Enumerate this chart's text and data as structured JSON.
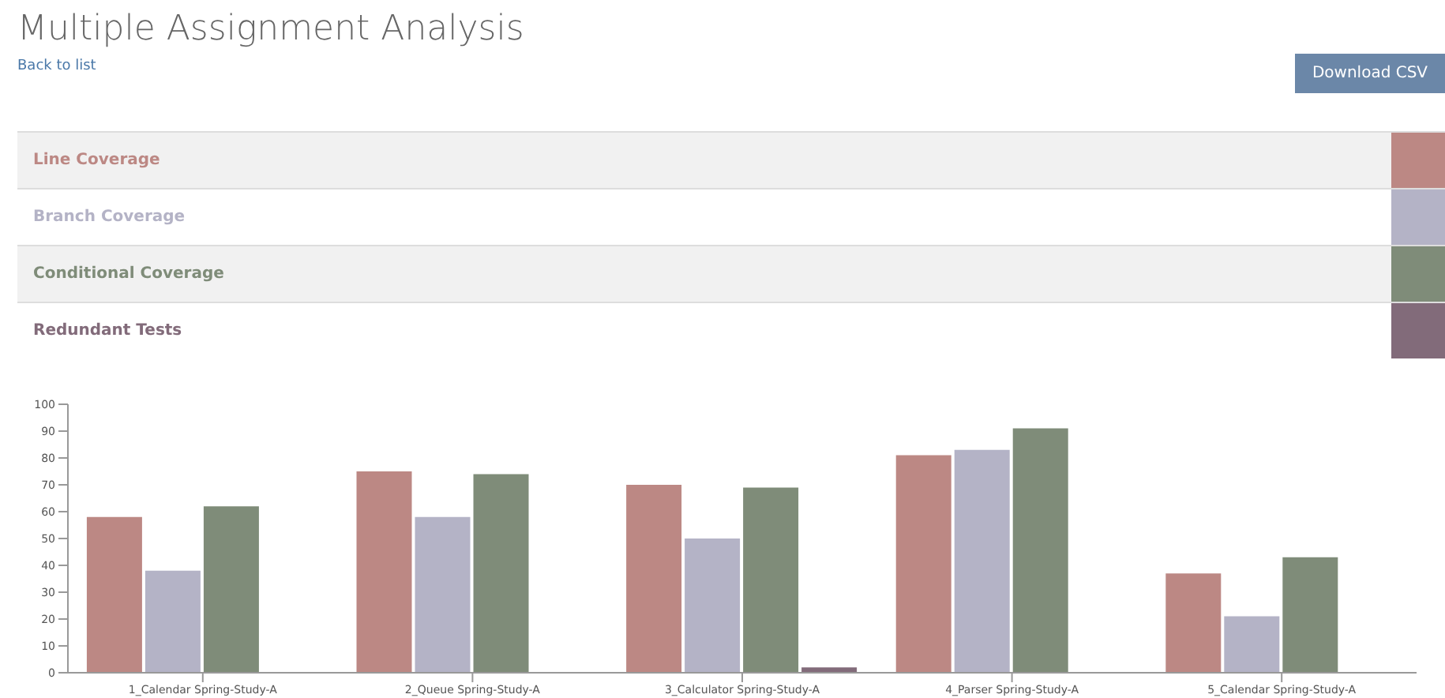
{
  "chart_data": {
    "type": "bar",
    "title": "Multiple Assignment Analysis",
    "annotations": [
      "Back to list",
      "Download CSV"
    ],
    "categories": [
      "1_Calendar Spring-Study-A",
      "2_Queue Spring-Study-A",
      "3_Calculator Spring-Study-A",
      "4_Parser Spring-Study-A",
      "5_Calendar Spring-Study-A"
    ],
    "series": [
      {
        "name": "Line Coverage",
        "color": "#bc8884",
        "values": [
          58,
          75,
          70,
          81,
          37
        ]
      },
      {
        "name": "Branch Coverage",
        "color": "#b4b3c6",
        "values": [
          38,
          58,
          50,
          83,
          21
        ]
      },
      {
        "name": "Conditional Coverage",
        "color": "#7f8c79",
        "values": [
          62,
          74,
          69,
          91,
          43
        ]
      },
      {
        "name": "Redundant Tests",
        "color": "#826b7a",
        "values": [
          0,
          0,
          2,
          0,
          0
        ]
      }
    ],
    "ylim": [
      0,
      100
    ],
    "yticks": [
      0,
      10,
      20,
      30,
      40,
      50,
      60,
      70,
      80,
      90,
      100
    ],
    "grid": false,
    "legend": "top"
  }
}
